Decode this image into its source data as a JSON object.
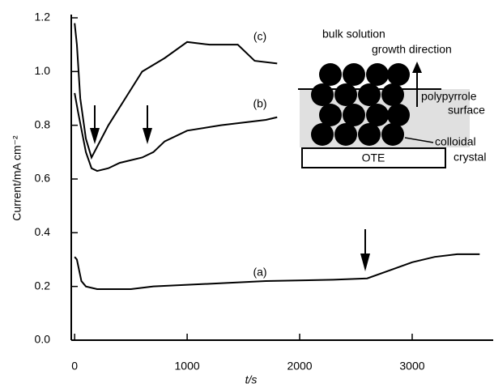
{
  "chart_data": {
    "type": "line",
    "xlabel": "t/s",
    "ylabel": "Current/mA cm⁻²",
    "xlim": [
      -30,
      3720
    ],
    "ylim": [
      0,
      1.2
    ],
    "xticks": [
      0,
      1000,
      2000,
      3000
    ],
    "yticks": [
      {
        "value": 0,
        "label": "0.0"
      },
      0.2,
      0.4,
      0.6,
      0.8,
      {
        "value": 1,
        "label": "1.0"
      },
      1.2
    ],
    "series": [
      {
        "name": "(a)",
        "color": "#000000",
        "x": [
          0,
          20,
          60,
          100,
          200,
          500,
          700,
          1200,
          1700,
          2300,
          2600,
          2800,
          3000,
          3200,
          3400,
          3600
        ],
        "values": [
          0.31,
          0.3,
          0.22,
          0.2,
          0.19,
          0.19,
          0.2,
          0.21,
          0.22,
          0.225,
          0.23,
          0.26,
          0.29,
          0.31,
          0.32,
          0.32
        ]
      },
      {
        "name": "(b)",
        "color": "#000000",
        "x": [
          0,
          30,
          100,
          150,
          200,
          300,
          400,
          600,
          700,
          800,
          1000,
          1300,
          1700,
          1800
        ],
        "values": [
          0.92,
          0.85,
          0.7,
          0.64,
          0.63,
          0.64,
          0.66,
          0.68,
          0.7,
          0.74,
          0.78,
          0.8,
          0.82,
          0.83
        ]
      },
      {
        "name": "(c)",
        "color": "#000000",
        "x": [
          0,
          20,
          50,
          100,
          150,
          200,
          300,
          450,
          600,
          800,
          1000,
          1200,
          1450,
          1600,
          1800
        ],
        "values": [
          1.18,
          1.1,
          0.9,
          0.75,
          0.68,
          0.72,
          0.8,
          0.9,
          1.0,
          1.05,
          1.11,
          1.1,
          1.1,
          1.04,
          1.03
        ]
      }
    ],
    "inset_labels": [
      "bulk solution",
      "growth direction",
      "polypyrrole",
      "surface",
      "colloidal",
      "crystal",
      "OTE"
    ]
  }
}
